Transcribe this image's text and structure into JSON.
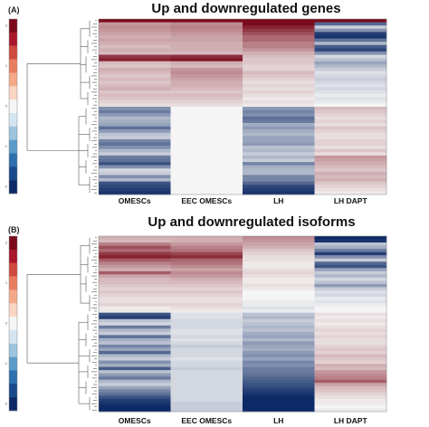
{
  "colors": {
    "low": "#0d2a66",
    "mid": "#f5f5f5",
    "high": "#7a0a1a",
    "scale": [
      "#7a0a1a",
      "#a8182a",
      "#cf4a3f",
      "#e87c5f",
      "#f4a989",
      "#fad5c2",
      "#f5f5f5",
      "#d4e5f1",
      "#9cc4de",
      "#5a9bc8",
      "#2f6fae",
      "#1a4a8c",
      "#0d2a66"
    ]
  },
  "chart_data": [
    {
      "panel": "(A)",
      "type": "heatmap",
      "title": "Up and downregulated genes",
      "columns": [
        "OMESCs",
        "EEC OMESCs",
        "LH",
        "LH DAPT"
      ],
      "color_scale_ticks": [
        "2",
        "",
        "",
        "1",
        "",
        "",
        "0",
        "",
        "",
        "-1",
        "",
        "",
        "-2"
      ],
      "row_labels": [
        "",
        "",
        "",
        "",
        "",
        "",
        "",
        "",
        "",
        "",
        "",
        "",
        "",
        "",
        "",
        "",
        "",
        "",
        "",
        "",
        "",
        "",
        "",
        "",
        "",
        "",
        "",
        "",
        "",
        "",
        "",
        "",
        "",
        "",
        "",
        "",
        "",
        "",
        "",
        "",
        "",
        "",
        "",
        "",
        "",
        "",
        "",
        "",
        "",
        "",
        "",
        "",
        "",
        ""
      ],
      "values": [
        [
          2.0,
          2.0,
          2.0,
          2.0
        ],
        [
          0.8,
          0.9,
          2.0,
          -1.4
        ],
        [
          0.9,
          1.0,
          1.8,
          -0.4
        ],
        [
          0.8,
          0.9,
          1.6,
          -1.0
        ],
        [
          0.7,
          0.8,
          1.4,
          -1.8
        ],
        [
          0.6,
          0.7,
          1.2,
          -1.9
        ],
        [
          0.7,
          0.7,
          1.2,
          -1.3
        ],
        [
          0.6,
          0.6,
          1.0,
          -0.6
        ],
        [
          0.5,
          0.6,
          1.0,
          -1.5
        ],
        [
          0.6,
          0.6,
          0.8,
          -1.7
        ],
        [
          0.5,
          0.5,
          0.6,
          -1.0
        ],
        [
          1.6,
          1.7,
          0.5,
          -0.3
        ],
        [
          1.8,
          1.9,
          0.4,
          -0.5
        ],
        [
          0.5,
          0.6,
          0.4,
          -0.8
        ],
        [
          0.4,
          0.5,
          0.3,
          -0.6
        ],
        [
          0.6,
          0.8,
          0.3,
          -0.4
        ],
        [
          0.5,
          0.9,
          0.5,
          -0.2
        ],
        [
          0.4,
          0.8,
          0.4,
          -0.3
        ],
        [
          0.5,
          0.7,
          0.3,
          -0.4
        ],
        [
          0.4,
          0.6,
          0.2,
          -0.3
        ],
        [
          0.5,
          0.6,
          0.3,
          -0.2
        ],
        [
          0.6,
          0.5,
          0.2,
          -0.3
        ],
        [
          0.4,
          0.4,
          0.3,
          -0.2
        ],
        [
          0.5,
          0.5,
          0.2,
          -0.1
        ],
        [
          0.4,
          0.4,
          0.1,
          -0.2
        ],
        [
          0.3,
          0.3,
          0.2,
          -0.1
        ],
        [
          0.2,
          0.2,
          0.1,
          0.0
        ],
        [
          -1.0,
          0.0,
          -0.9,
          0.5
        ],
        [
          -1.2,
          0.0,
          -1.1,
          0.4
        ],
        [
          -0.9,
          0.0,
          -1.0,
          0.3
        ],
        [
          -0.6,
          0.0,
          -1.3,
          0.2
        ],
        [
          -0.7,
          0.0,
          -1.2,
          0.3
        ],
        [
          -0.8,
          0.0,
          -0.7,
          0.2
        ],
        [
          -1.3,
          0.0,
          -0.9,
          0.4
        ],
        [
          -0.9,
          0.0,
          -0.7,
          0.3
        ],
        [
          -0.5,
          0.0,
          -0.6,
          0.2
        ],
        [
          -0.4,
          0.0,
          -0.8,
          0.2
        ],
        [
          -1.1,
          0.0,
          -0.8,
          0.3
        ],
        [
          -1.3,
          0.0,
          -0.9,
          0.3
        ],
        [
          -1.0,
          0.0,
          -0.5,
          0.2
        ],
        [
          -0.6,
          0.0,
          -0.6,
          0.4
        ],
        [
          -0.4,
          0.0,
          -0.4,
          0.2
        ],
        [
          -1.2,
          0.0,
          -0.6,
          0.8
        ],
        [
          -1.3,
          0.0,
          -0.4,
          0.7
        ],
        [
          -1.6,
          0.0,
          -1.1,
          0.6
        ],
        [
          -1.0,
          0.0,
          -0.7,
          0.5
        ],
        [
          -0.3,
          0.0,
          -0.6,
          0.4
        ],
        [
          -0.4,
          0.0,
          -0.6,
          0.6
        ],
        [
          -1.0,
          0.0,
          -1.1,
          0.5
        ],
        [
          -0.6,
          0.0,
          -1.1,
          0.6
        ],
        [
          -1.6,
          0.0,
          -1.4,
          0.4
        ],
        [
          -1.7,
          0.0,
          -1.7,
          0.3
        ],
        [
          -1.8,
          0.0,
          -1.8,
          0.2
        ],
        [
          -1.9,
          0.0,
          -1.9,
          0.1
        ]
      ]
    },
    {
      "panel": "(B)",
      "type": "heatmap",
      "title": "Up and downregulated isoforms",
      "columns": [
        "OMESCs",
        "EEC OMESCs",
        "LH",
        "LH DAPT"
      ],
      "color_scale_ticks": [
        "2",
        "",
        "",
        "1",
        "",
        "",
        "0",
        "",
        "",
        "-1",
        "",
        "",
        "-2"
      ],
      "row_labels": [
        "",
        "",
        "",
        "",
        "",
        "",
        "",
        "",
        "",
        "",
        "",
        "",
        "",
        "",
        "",
        "",
        "",
        "",
        "",
        "",
        "",
        "",
        "",
        "",
        "",
        "",
        "",
        "",
        "",
        "",
        "",
        "",
        "",
        "",
        "",
        "",
        "",
        "",
        "",
        "",
        "",
        "",
        "",
        "",
        "",
        "",
        "",
        "",
        "",
        "",
        "",
        "",
        "",
        "",
        "",
        ""
      ],
      "values": [
        [
          0.6,
          0.6,
          0.9,
          -2.0
        ],
        [
          0.5,
          0.6,
          0.8,
          -1.9
        ],
        [
          1.0,
          0.8,
          0.7,
          -0.5
        ],
        [
          1.4,
          1.0,
          0.6,
          -0.7
        ],
        [
          1.2,
          1.1,
          0.4,
          -1.2
        ],
        [
          1.6,
          1.5,
          0.3,
          -1.8
        ],
        [
          1.8,
          1.7,
          0.2,
          -1.0
        ],
        [
          1.3,
          1.2,
          0.2,
          -0.4
        ],
        [
          1.0,
          1.1,
          0.1,
          -1.4
        ],
        [
          0.8,
          0.9,
          0.1,
          -1.6
        ],
        [
          0.6,
          0.7,
          0.2,
          -0.8
        ],
        [
          1.3,
          0.9,
          0.3,
          -0.4
        ],
        [
          0.7,
          0.8,
          0.2,
          -0.6
        ],
        [
          0.5,
          0.6,
          0.1,
          -0.3
        ],
        [
          0.5,
          0.5,
          0.1,
          -0.5
        ],
        [
          0.4,
          0.4,
          0.2,
          -0.9
        ],
        [
          0.3,
          0.3,
          0.1,
          -0.4
        ],
        [
          0.4,
          0.4,
          0.0,
          -0.2
        ],
        [
          0.3,
          0.3,
          0.0,
          -0.3
        ],
        [
          0.2,
          0.2,
          0.0,
          -0.1
        ],
        [
          0.2,
          0.2,
          -0.1,
          -0.2
        ],
        [
          0.3,
          0.3,
          -0.1,
          -0.1
        ],
        [
          0.1,
          0.2,
          -0.2,
          0.0
        ],
        [
          0.1,
          0.1,
          -0.1,
          0.0
        ],
        [
          -1.6,
          -0.2,
          -0.5,
          0.2
        ],
        [
          -1.8,
          -0.2,
          -0.6,
          0.1
        ],
        [
          -0.5,
          -0.3,
          -0.4,
          0.2
        ],
        [
          -0.3,
          -0.3,
          -0.5,
          0.1
        ],
        [
          -1.2,
          -0.3,
          -0.6,
          0.2
        ],
        [
          -0.6,
          -0.2,
          -0.5,
          0.3
        ],
        [
          -0.4,
          -0.2,
          -0.7,
          0.2
        ],
        [
          -1.3,
          -0.3,
          -0.8,
          0.3
        ],
        [
          -0.7,
          -0.2,
          -0.6,
          0.2
        ],
        [
          -0.5,
          -0.3,
          -0.9,
          0.2
        ],
        [
          -1.1,
          -0.4,
          -0.8,
          0.3
        ],
        [
          -0.8,
          -0.3,
          -0.7,
          0.4
        ],
        [
          -1.4,
          -0.3,
          -0.9,
          0.3
        ],
        [
          -0.6,
          -0.3,
          -1.0,
          0.5
        ],
        [
          -0.4,
          -0.2,
          -0.8,
          0.4
        ],
        [
          -1.0,
          -0.3,
          -1.1,
          0.3
        ],
        [
          -0.7,
          -0.3,
          -1.0,
          0.6
        ],
        [
          -1.5,
          -0.4,
          -1.2,
          0.5
        ],
        [
          -0.5,
          -0.3,
          -1.2,
          0.8
        ],
        [
          -0.9,
          -0.3,
          -1.3,
          0.9
        ],
        [
          -1.2,
          -0.3,
          -1.4,
          1.0
        ],
        [
          -0.6,
          -0.3,
          -1.5,
          1.3
        ],
        [
          -0.4,
          -0.3,
          -1.6,
          0.7
        ],
        [
          -0.8,
          -0.3,
          -1.7,
          0.5
        ],
        [
          -1.1,
          -0.3,
          -1.8,
          0.4
        ],
        [
          -1.3,
          -0.3,
          -1.9,
          0.3
        ],
        [
          -1.6,
          -0.3,
          -2.0,
          0.2
        ],
        [
          -1.8,
          -0.3,
          -2.0,
          0.1
        ],
        [
          -1.9,
          -0.4,
          -2.0,
          0.1
        ],
        [
          -2.0,
          -0.4,
          -2.0,
          0.0
        ],
        [
          -2.0,
          -0.4,
          -2.0,
          -0.1
        ]
      ]
    }
  ]
}
